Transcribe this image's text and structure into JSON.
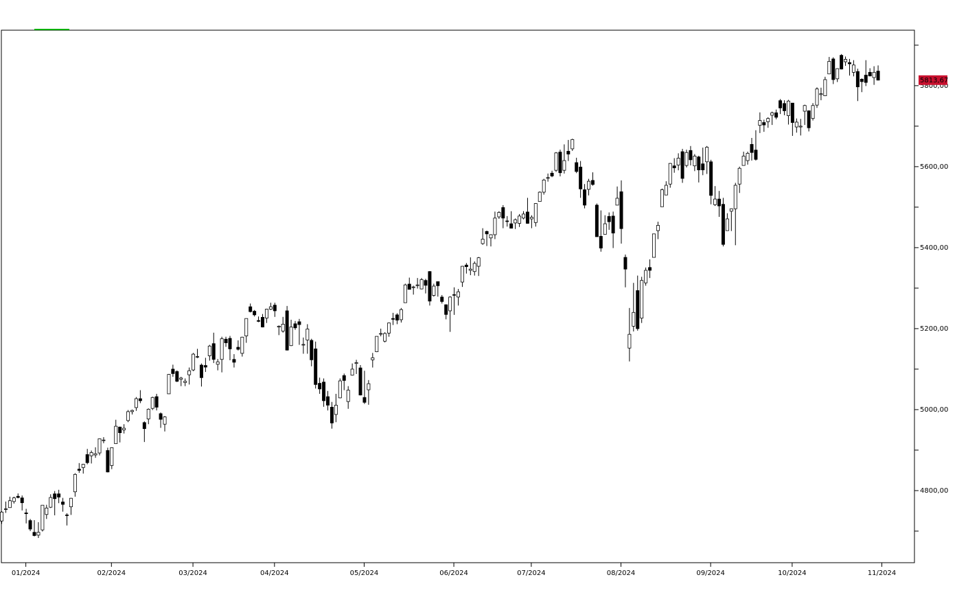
{
  "chart_data": {
    "type": "candlestick",
    "ohlc": [
      [
        4725,
        4749,
        4718,
        4747
      ],
      [
        4754,
        4773,
        4745,
        4755
      ],
      [
        4758,
        4785,
        4758,
        4775
      ],
      [
        4773,
        4785,
        4768,
        4782
      ],
      [
        4786,
        4793,
        4781,
        4783
      ],
      [
        4782,
        4788,
        4751,
        4770
      ],
      [
        4745,
        4755,
        4719,
        4743
      ],
      [
        4726,
        4730,
        4700,
        4705
      ],
      [
        4697,
        4727,
        4687,
        4689
      ],
      [
        4690,
        4722,
        4683,
        4697
      ],
      [
        4703,
        4764,
        4699,
        4764
      ],
      [
        4741,
        4765,
        4730,
        4757
      ],
      [
        4759,
        4791,
        4757,
        4783
      ],
      [
        4792,
        4799,
        4739,
        4780
      ],
      [
        4792,
        4802,
        4769,
        4784
      ],
      [
        4772,
        4782,
        4748,
        4766
      ],
      [
        4740,
        4744,
        4714,
        4739
      ],
      [
        4760,
        4782,
        4740,
        4781
      ],
      [
        4797,
        4843,
        4785,
        4840
      ],
      [
        4853,
        4868,
        4844,
        4850
      ],
      [
        4857,
        4866,
        4842,
        4865
      ],
      [
        4889,
        4903,
        4865,
        4869
      ],
      [
        4886,
        4899,
        4867,
        4894
      ],
      [
        4888,
        4907,
        4881,
        4891
      ],
      [
        4893,
        4929,
        4887,
        4928
      ],
      [
        4925,
        4932,
        4917,
        4925
      ],
      [
        4899,
        4906,
        4845,
        4846
      ],
      [
        4862,
        4907,
        4853,
        4906
      ],
      [
        4916,
        4975,
        4916,
        4959
      ],
      [
        4957,
        4958,
        4919,
        4943
      ],
      [
        4950,
        4964,
        4941,
        4954
      ],
      [
        4973,
        4999,
        4969,
        4995
      ],
      [
        4995,
        5000,
        4988,
        4998
      ],
      [
        5005,
        5031,
        4997,
        5027
      ],
      [
        5027,
        5048,
        5016,
        5022
      ],
      [
        4968,
        4971,
        4920,
        4953
      ],
      [
        4977,
        5003,
        4964,
        5001
      ],
      [
        5003,
        5032,
        4999,
        5030
      ],
      [
        5032,
        5039,
        4998,
        5006
      ],
      [
        4990,
        4993,
        4955,
        4976
      ],
      [
        4964,
        4984,
        4946,
        4982
      ],
      [
        5039,
        5088,
        5039,
        5087
      ],
      [
        5100,
        5111,
        5081,
        5089
      ],
      [
        5094,
        5097,
        5068,
        5070
      ],
      [
        5075,
        5081,
        5058,
        5078
      ],
      [
        5067,
        5077,
        5058,
        5070
      ],
      [
        5086,
        5104,
        5062,
        5096
      ],
      [
        5098,
        5140,
        5095,
        5137
      ],
      [
        5131,
        5150,
        5127,
        5131
      ],
      [
        5110,
        5114,
        5057,
        5079
      ],
      [
        5109,
        5128,
        5093,
        5105
      ],
      [
        5133,
        5160,
        5121,
        5157
      ],
      [
        5163,
        5190,
        5115,
        5124
      ],
      [
        5112,
        5125,
        5097,
        5118
      ],
      [
        5124,
        5180,
        5092,
        5175
      ],
      [
        5174,
        5180,
        5155,
        5165
      ],
      [
        5176,
        5182,
        5122,
        5150
      ],
      [
        5124,
        5137,
        5104,
        5117
      ],
      [
        5154,
        5171,
        5146,
        5149
      ],
      [
        5139,
        5180,
        5131,
        5179
      ],
      [
        5182,
        5225,
        5165,
        5225
      ],
      [
        5254,
        5262,
        5240,
        5242
      ],
      [
        5243,
        5246,
        5230,
        5234
      ],
      [
        5220,
        5230,
        5216,
        5218
      ],
      [
        5228,
        5236,
        5203,
        5204
      ],
      [
        5226,
        5249,
        5214,
        5248
      ],
      [
        5248,
        5264,
        5246,
        5254
      ],
      [
        5258,
        5264,
        5229,
        5244
      ],
      [
        5204,
        5208,
        5184,
        5206
      ],
      [
        5194,
        5229,
        5190,
        5211
      ],
      [
        5244,
        5256,
        5146,
        5147
      ],
      [
        5158,
        5222,
        5157,
        5204
      ],
      [
        5212,
        5219,
        5197,
        5202
      ],
      [
        5217,
        5224,
        5160,
        5210
      ],
      [
        5160,
        5178,
        5138,
        5161
      ],
      [
        5172,
        5211,
        5138,
        5199
      ],
      [
        5171,
        5175,
        5107,
        5123
      ],
      [
        5150,
        5168,
        5052,
        5062
      ],
      [
        5065,
        5079,
        5039,
        5051
      ],
      [
        5068,
        5077,
        5007,
        5022
      ],
      [
        5032,
        5046,
        4998,
        5011
      ],
      [
        5006,
        5019,
        4953,
        4967
      ],
      [
        4988,
        5039,
        4969,
        5011
      ],
      [
        5029,
        5077,
        5028,
        5071
      ],
      [
        5084,
        5089,
        5048,
        5072
      ],
      [
        5020,
        5058,
        5002,
        5048
      ],
      [
        5085,
        5114,
        5084,
        5100
      ],
      [
        5114,
        5123,
        5088,
        5116
      ],
      [
        5103,
        5110,
        5035,
        5036
      ],
      [
        5030,
        5096,
        5014,
        5018
      ],
      [
        5049,
        5073,
        5012,
        5064
      ],
      [
        5123,
        5140,
        5104,
        5128
      ],
      [
        5143,
        5181,
        5142,
        5181
      ],
      [
        5187,
        5200,
        5181,
        5188
      ],
      [
        5169,
        5191,
        5166,
        5188
      ],
      [
        5189,
        5215,
        5180,
        5214
      ],
      [
        5225,
        5239,
        5209,
        5223
      ],
      [
        5234,
        5238,
        5211,
        5221
      ],
      [
        5222,
        5251,
        5215,
        5247
      ],
      [
        5264,
        5311,
        5264,
        5308
      ],
      [
        5310,
        5326,
        5297,
        5297
      ],
      [
        5303,
        5306,
        5284,
        5303
      ],
      [
        5307,
        5325,
        5299,
        5308
      ],
      [
        5298,
        5325,
        5297,
        5321
      ],
      [
        5319,
        5323,
        5287,
        5307
      ],
      [
        5341,
        5342,
        5257,
        5268
      ],
      [
        5282,
        5311,
        5279,
        5305
      ],
      [
        5316,
        5316,
        5279,
        5306
      ],
      [
        5278,
        5283,
        5262,
        5267
      ],
      [
        5259,
        5260,
        5223,
        5235
      ],
      [
        5244,
        5280,
        5192,
        5278
      ],
      [
        5284,
        5302,
        5234,
        5283
      ],
      [
        5278,
        5298,
        5257,
        5291
      ],
      [
        5315,
        5355,
        5303,
        5354
      ],
      [
        5357,
        5362,
        5336,
        5353
      ],
      [
        5344,
        5376,
        5332,
        5347
      ],
      [
        5341,
        5366,
        5331,
        5361
      ],
      [
        5354,
        5377,
        5330,
        5375
      ],
      [
        5410,
        5448,
        5407,
        5421
      ],
      [
        5440,
        5442,
        5404,
        5434
      ],
      [
        5424,
        5433,
        5403,
        5432
      ],
      [
        5432,
        5489,
        5421,
        5473
      ],
      [
        5476,
        5490,
        5471,
        5487
      ],
      [
        5499,
        5505,
        5448,
        5473
      ],
      [
        5466,
        5478,
        5452,
        5465
      ],
      [
        5459,
        5490,
        5448,
        5448
      ],
      [
        5461,
        5472,
        5446,
        5469
      ],
      [
        5460,
        5483,
        5451,
        5478
      ],
      [
        5473,
        5490,
        5470,
        5483
      ],
      [
        5488,
        5523,
        5459,
        5460
      ],
      [
        5471,
        5480,
        5448,
        5475
      ],
      [
        5462,
        5510,
        5452,
        5509
      ],
      [
        5514,
        5539,
        5514,
        5537
      ],
      [
        5537,
        5570,
        5531,
        5567
      ],
      [
        5572,
        5583,
        5563,
        5573
      ],
      [
        5584,
        5590,
        5574,
        5577
      ],
      [
        5591,
        5636,
        5587,
        5634
      ],
      [
        5636,
        5642,
        5576,
        5585
      ],
      [
        5591,
        5655,
        5583,
        5615
      ],
      [
        5638,
        5666,
        5614,
        5631
      ],
      [
        5644,
        5669,
        5639,
        5667
      ],
      [
        5610,
        5622,
        5584,
        5588
      ],
      [
        5599,
        5614,
        5523,
        5545
      ],
      [
        5543,
        5557,
        5497,
        5505
      ],
      [
        5544,
        5570,
        5529,
        5564
      ],
      [
        5566,
        5586,
        5553,
        5556
      ],
      [
        5505,
        5509,
        5427,
        5427
      ],
      [
        5428,
        5492,
        5390,
        5399
      ],
      [
        5433,
        5480,
        5433,
        5459
      ],
      [
        5477,
        5487,
        5444,
        5464
      ],
      [
        5478,
        5489,
        5399,
        5436
      ],
      [
        5505,
        5551,
        5505,
        5522
      ],
      [
        5538,
        5566,
        5410,
        5447
      ],
      [
        5376,
        5383,
        5302,
        5347
      ],
      [
        5152,
        5251,
        5119,
        5186
      ],
      [
        5206,
        5313,
        5193,
        5240
      ],
      [
        5294,
        5331,
        5195,
        5200
      ],
      [
        5226,
        5328,
        5214,
        5319
      ],
      [
        5313,
        5351,
        5306,
        5344
      ],
      [
        5351,
        5371,
        5325,
        5344
      ],
      [
        5376,
        5434,
        5376,
        5434
      ],
      [
        5442,
        5464,
        5421,
        5455
      ],
      [
        5501,
        5546,
        5501,
        5543
      ],
      [
        5530,
        5564,
        5530,
        5554
      ],
      [
        5557,
        5609,
        5548,
        5608
      ],
      [
        5602,
        5621,
        5585,
        5597
      ],
      [
        5604,
        5633,
        5591,
        5621
      ],
      [
        5637,
        5644,
        5560,
        5571
      ],
      [
        5603,
        5642,
        5598,
        5635
      ],
      [
        5640,
        5651,
        5603,
        5617
      ],
      [
        5602,
        5631,
        5589,
        5626
      ],
      [
        5624,
        5627,
        5561,
        5592
      ],
      [
        5607,
        5647,
        5579,
        5592
      ],
      [
        5612,
        5651,
        5582,
        5648
      ],
      [
        5612,
        5617,
        5507,
        5529
      ],
      [
        5506,
        5552,
        5503,
        5520
      ],
      [
        5520,
        5540,
        5476,
        5503
      ],
      [
        5507,
        5523,
        5403,
        5408
      ],
      [
        5442,
        5485,
        5442,
        5471
      ],
      [
        5490,
        5497,
        5441,
        5496
      ],
      [
        5496,
        5560,
        5406,
        5554
      ],
      [
        5557,
        5600,
        5535,
        5596
      ],
      [
        5603,
        5637,
        5603,
        5626
      ],
      [
        5615,
        5637,
        5605,
        5633
      ],
      [
        5655,
        5671,
        5615,
        5635
      ],
      [
        5641,
        5690,
        5615,
        5618
      ],
      [
        5702,
        5734,
        5683,
        5714
      ],
      [
        5709,
        5716,
        5686,
        5703
      ],
      [
        5711,
        5722,
        5696,
        5719
      ],
      [
        5727,
        5736,
        5703,
        5733
      ],
      [
        5733,
        5741,
        5717,
        5722
      ],
      [
        5763,
        5767,
        5730,
        5745
      ],
      [
        5756,
        5764,
        5727,
        5738
      ],
      [
        5726,
        5765,
        5704,
        5762
      ],
      [
        5757,
        5757,
        5676,
        5709
      ],
      [
        5698,
        5719,
        5684,
        5710
      ],
      [
        5698,
        5718,
        5677,
        5700
      ],
      [
        5737,
        5753,
        5703,
        5751
      ],
      [
        5738,
        5739,
        5687,
        5696
      ],
      [
        5719,
        5757,
        5714,
        5751
      ],
      [
        5752,
        5796,
        5745,
        5792
      ],
      [
        5778,
        5795,
        5764,
        5780
      ],
      [
        5775,
        5822,
        5775,
        5815
      ],
      [
        5829,
        5871,
        5829,
        5860
      ],
      [
        5866,
        5870,
        5804,
        5815
      ],
      [
        5817,
        5843,
        5809,
        5842
      ],
      [
        5875,
        5878,
        5840,
        5841
      ],
      [
        5859,
        5872,
        5849,
        5865
      ],
      [
        5857,
        5866,
        5825,
        5854
      ],
      [
        5833,
        5863,
        5823,
        5851
      ],
      [
        5835,
        5842,
        5762,
        5797
      ],
      [
        5816,
        5818,
        5784,
        5810
      ],
      [
        5826,
        5863,
        5799,
        5808
      ],
      [
        5833,
        5843,
        5823,
        5824
      ],
      [
        5820,
        5848,
        5802,
        5833
      ],
      [
        5836,
        5850,
        5813,
        5813.67
      ]
    ],
    "up_color": "#ffffff",
    "down_color": "#000000",
    "xlim": [
      0,
      224
    ],
    "xticks": [
      {
        "value": 6,
        "label": "01/2024"
      },
      {
        "value": 27,
        "label": "02/2024"
      },
      {
        "value": 47,
        "label": "03/2024"
      },
      {
        "value": 67,
        "label": "04/2024"
      },
      {
        "value": 89,
        "label": "05/2024"
      },
      {
        "value": 111,
        "label": "06/2024"
      },
      {
        "value": 130,
        "label": "07/2024"
      },
      {
        "value": 152,
        "label": "08/2024"
      },
      {
        "value": 174,
        "label": "09/2024"
      },
      {
        "value": 194,
        "label": "10/2024"
      },
      {
        "value": 216,
        "label": "11/2024"
      }
    ],
    "ylim": [
      4622,
      5937
    ],
    "yticks": [
      {
        "value": 4800,
        "label": "4800,00"
      },
      {
        "value": 5000,
        "label": "5000,00"
      },
      {
        "value": 5200,
        "label": "5200,00"
      },
      {
        "value": 5400,
        "label": "5400,00"
      },
      {
        "value": 5600,
        "label": "5600,00"
      },
      {
        "value": 5800,
        "label": "5800,00"
      }
    ],
    "minor_yticks": [
      4700,
      4900,
      5100,
      5300,
      5500,
      5700,
      5900
    ],
    "last_price": {
      "value": 5813.67,
      "label": "5813,67",
      "color": "#c8102e"
    }
  }
}
